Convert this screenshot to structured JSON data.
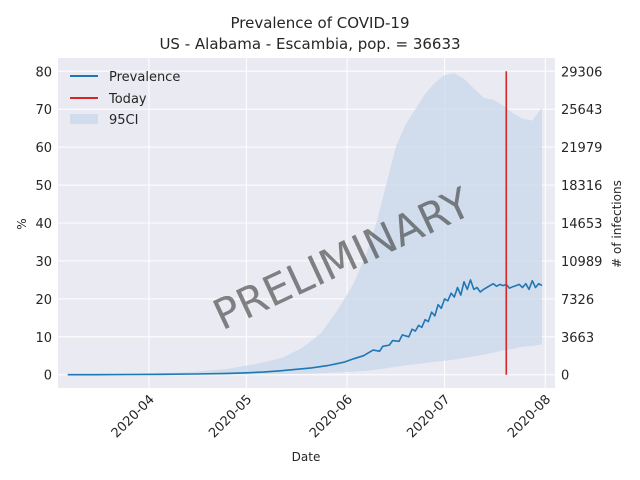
{
  "chart_data": {
    "type": "line",
    "title": "Prevalence of COVID-19",
    "subtitle": "US - Alabama - Escambia, pop. = 36633",
    "xlabel": "Date",
    "ylabel": "%",
    "y2label": "# of infections",
    "watermark": "PRELIMINARY",
    "grid": true,
    "legend_placement": "top-left",
    "x_range": [
      "2020-03-04",
      "2020-08-04"
    ],
    "ylim": [
      -3.5,
      83.5
    ],
    "x_ticks": [
      "2020-04",
      "2020-05",
      "2020-06",
      "2020-07",
      "2020-08"
    ],
    "y_ticks": [
      0,
      10,
      20,
      30,
      40,
      50,
      60,
      70,
      80
    ],
    "y2_ticks": [
      "0",
      "3663",
      "7326",
      "10989",
      "14653",
      "18316",
      "21979",
      "25643",
      "29306"
    ],
    "today": "2020-07-20",
    "series": [
      {
        "name": "Prevalence",
        "kind": "line",
        "color": "#1f77b4",
        "x": [
          "2020-03-07",
          "2020-03-15",
          "2020-03-25",
          "2020-04-05",
          "2020-04-15",
          "2020-04-25",
          "2020-05-01",
          "2020-05-06",
          "2020-05-11",
          "2020-05-16",
          "2020-05-21",
          "2020-05-26",
          "2020-05-31",
          "2020-06-03",
          "2020-06-06",
          "2020-06-09",
          "2020-06-11",
          "2020-06-12",
          "2020-06-14",
          "2020-06-15",
          "2020-06-17",
          "2020-06-18",
          "2020-06-20",
          "2020-06-21",
          "2020-06-22",
          "2020-06-23",
          "2020-06-24",
          "2020-06-25",
          "2020-06-26",
          "2020-06-27",
          "2020-06-28",
          "2020-06-29",
          "2020-06-30",
          "2020-07-01",
          "2020-07-02",
          "2020-07-03",
          "2020-07-04",
          "2020-07-05",
          "2020-07-06",
          "2020-07-07",
          "2020-07-08",
          "2020-07-09",
          "2020-07-10",
          "2020-07-11",
          "2020-07-12",
          "2020-07-13",
          "2020-07-14",
          "2020-07-15",
          "2020-07-16",
          "2020-07-17",
          "2020-07-18",
          "2020-07-19",
          "2020-07-20",
          "2020-07-21",
          "2020-07-22",
          "2020-07-23",
          "2020-07-24",
          "2020-07-25",
          "2020-07-26",
          "2020-07-27",
          "2020-07-28",
          "2020-07-29",
          "2020-07-30",
          "2020-07-31"
        ],
        "values": [
          0.0,
          0.0,
          0.05,
          0.1,
          0.2,
          0.35,
          0.5,
          0.7,
          1.0,
          1.4,
          1.8,
          2.4,
          3.3,
          4.2,
          5.0,
          6.5,
          6.2,
          7.5,
          7.8,
          9.0,
          8.8,
          10.5,
          10.0,
          12.0,
          11.5,
          13.0,
          12.5,
          14.5,
          14.0,
          16.5,
          15.5,
          18.5,
          17.5,
          20.0,
          19.5,
          21.5,
          20.5,
          23.0,
          21.0,
          24.5,
          22.5,
          25.0,
          22.5,
          23.0,
          21.8,
          22.5,
          23.0,
          23.5,
          24.0,
          23.3,
          23.8,
          23.5,
          23.8,
          22.8,
          23.2,
          23.5,
          23.8,
          23.0,
          24.0,
          22.5,
          24.8,
          23.0,
          24.0,
          23.5
        ]
      },
      {
        "name": "Today",
        "kind": "vline",
        "color": "#d62728",
        "x": "2020-07-20",
        "y_from": 0,
        "y_to": 80
      },
      {
        "name": "95CI",
        "kind": "band",
        "color": "#c8d8ea",
        "x": [
          "2020-03-07",
          "2020-04-01",
          "2020-04-15",
          "2020-04-25",
          "2020-05-05",
          "2020-05-12",
          "2020-05-18",
          "2020-05-24",
          "2020-05-29",
          "2020-06-03",
          "2020-06-07",
          "2020-06-10",
          "2020-06-13",
          "2020-06-16",
          "2020-06-19",
          "2020-06-22",
          "2020-06-25",
          "2020-06-28",
          "2020-07-01",
          "2020-07-04",
          "2020-07-07",
          "2020-07-10",
          "2020-07-13",
          "2020-07-16",
          "2020-07-19",
          "2020-07-22",
          "2020-07-25",
          "2020-07-28",
          "2020-07-31"
        ],
        "upper": [
          0.0,
          0.3,
          0.8,
          1.5,
          3.0,
          4.5,
          7.0,
          11.0,
          17.0,
          24.0,
          32.0,
          40.0,
          50.0,
          60.0,
          66.0,
          70.0,
          74.0,
          77.0,
          79.0,
          79.5,
          78.0,
          75.5,
          73.0,
          72.5,
          71.0,
          69.0,
          67.5,
          67.0,
          70.5
        ],
        "lower": [
          0.0,
          0.0,
          0.0,
          0.0,
          0.1,
          0.2,
          0.3,
          0.4,
          0.6,
          0.8,
          1.0,
          1.3,
          1.7,
          2.1,
          2.5,
          2.8,
          3.1,
          3.4,
          3.7,
          4.0,
          4.4,
          4.8,
          5.3,
          5.8,
          6.4,
          6.8,
          7.4,
          7.6,
          8.0
        ]
      }
    ]
  }
}
